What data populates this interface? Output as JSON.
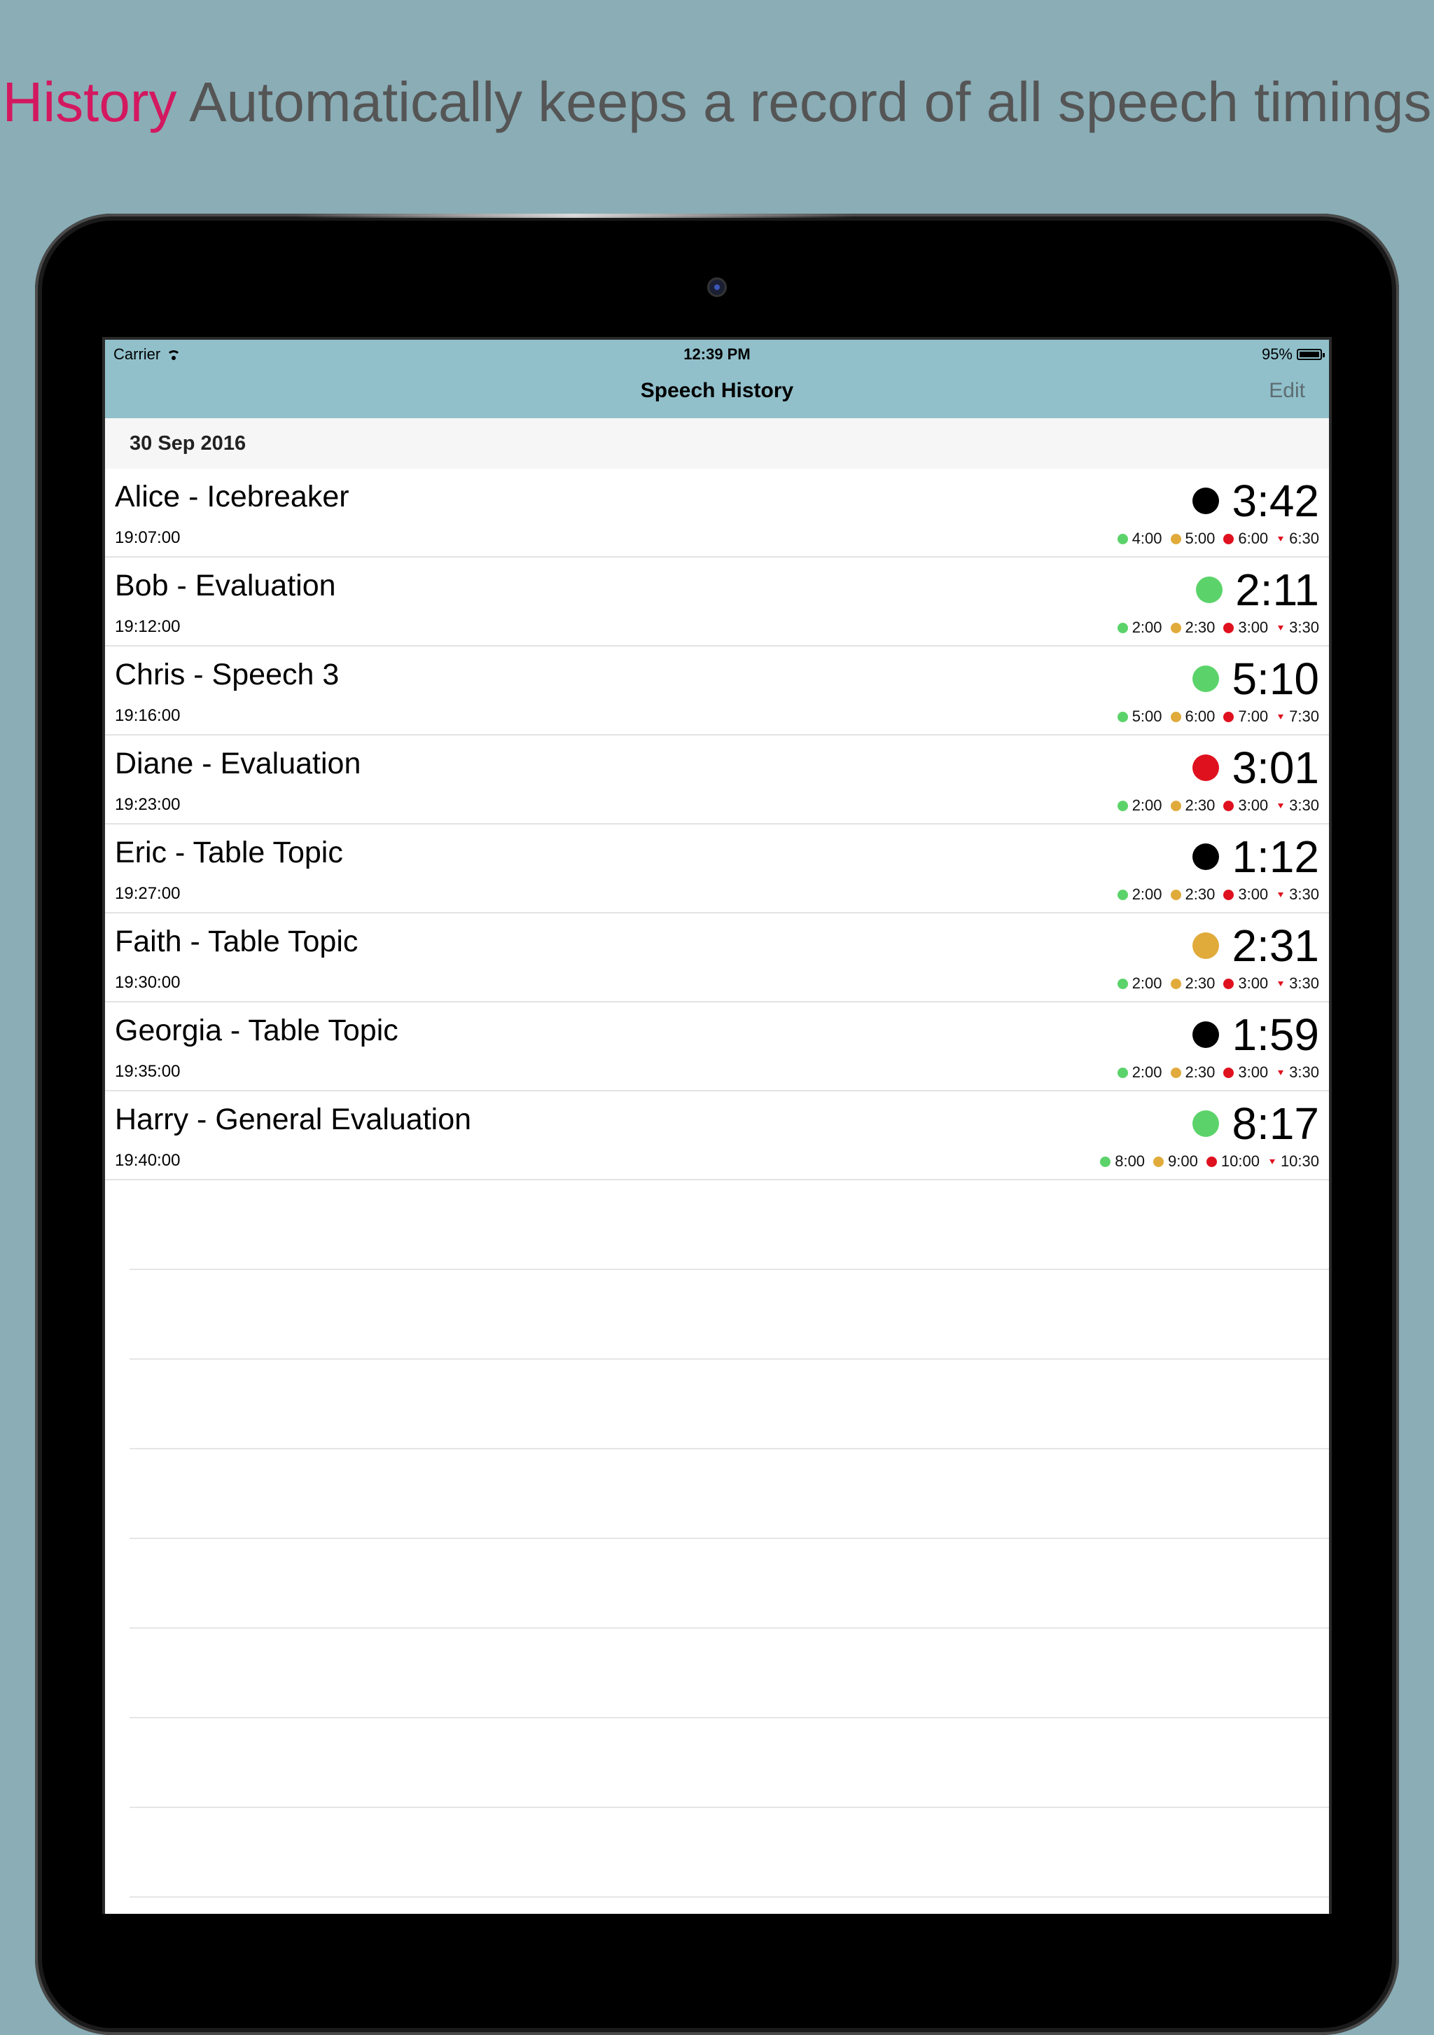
{
  "headline": {
    "accent": "History",
    "text": " Automatically keeps a record of all speech timings"
  },
  "status_bar": {
    "carrier": "Carrier",
    "clock": "12:39 PM",
    "battery": "95%"
  },
  "nav": {
    "title": "Speech History",
    "edit_label": "Edit"
  },
  "section": {
    "date": "30 Sep 2016"
  },
  "colors": {
    "green": "#5bd36a",
    "amber": "#e1ab3b",
    "red": "#e0111f",
    "black": "#000000"
  },
  "speeches": [
    {
      "name": "Alice - Icebreaker",
      "time": "19:07:00",
      "duration": "3:42",
      "status": "black",
      "green": "4:00",
      "amber": "5:00",
      "red": "6:00",
      "over": "6:30"
    },
    {
      "name": "Bob - Evaluation",
      "time": "19:12:00",
      "duration": "2:11",
      "status": "green",
      "green": "2:00",
      "amber": "2:30",
      "red": "3:00",
      "over": "3:30"
    },
    {
      "name": "Chris - Speech 3",
      "time": "19:16:00",
      "duration": "5:10",
      "status": "green",
      "green": "5:00",
      "amber": "6:00",
      "red": "7:00",
      "over": "7:30"
    },
    {
      "name": "Diane - Evaluation",
      "time": "19:23:00",
      "duration": "3:01",
      "status": "red",
      "green": "2:00",
      "amber": "2:30",
      "red": "3:00",
      "over": "3:30"
    },
    {
      "name": "Eric - Table Topic",
      "time": "19:27:00",
      "duration": "1:12",
      "status": "black",
      "green": "2:00",
      "amber": "2:30",
      "red": "3:00",
      "over": "3:30"
    },
    {
      "name": "Faith - Table Topic",
      "time": "19:30:00",
      "duration": "2:31",
      "status": "amber",
      "green": "2:00",
      "amber": "2:30",
      "red": "3:00",
      "over": "3:30"
    },
    {
      "name": "Georgia - Table Topic",
      "time": "19:35:00",
      "duration": "1:59",
      "status": "black",
      "green": "2:00",
      "amber": "2:30",
      "red": "3:00",
      "over": "3:30"
    },
    {
      "name": "Harry - General Evaluation",
      "time": "19:40:00",
      "duration": "8:17",
      "status": "green",
      "green": "8:00",
      "amber": "9:00",
      "red": "10:00",
      "over": "10:30"
    }
  ]
}
